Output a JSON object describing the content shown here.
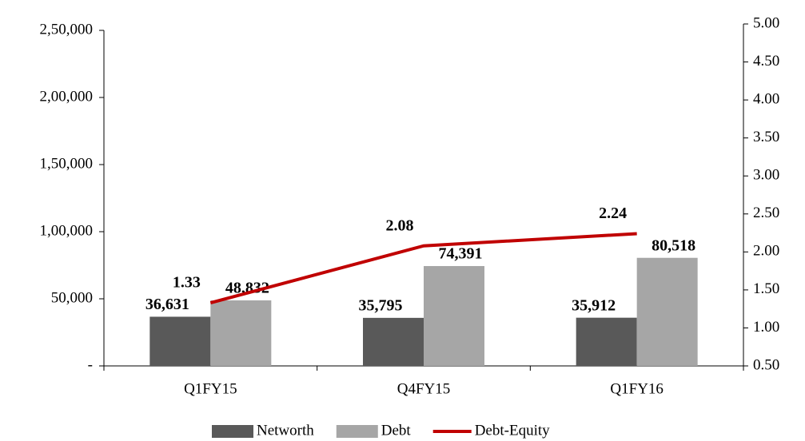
{
  "chart_data": {
    "type": "bar",
    "categories": [
      "Q1FY15",
      "Q4FY15",
      "Q1FY16"
    ],
    "series": [
      {
        "name": "Networth",
        "type": "bar",
        "color": "#595959",
        "values": [
          36631,
          35795,
          35912
        ],
        "value_labels": [
          "36,631",
          "35,795",
          "35,912"
        ]
      },
      {
        "name": "Debt",
        "type": "bar",
        "color": "#a6a6a6",
        "values": [
          48832,
          74391,
          80518
        ],
        "value_labels": [
          "48,832",
          "74,391",
          "80,518"
        ]
      },
      {
        "name": "Debt-Equity",
        "type": "line",
        "axis": "y2",
        "color": "#c00000",
        "values": [
          1.33,
          2.08,
          2.24
        ]
      }
    ],
    "ylim": [
      0,
      250000
    ],
    "yticks": [
      {
        "value": 0,
        "label": "-"
      },
      {
        "value": 50000,
        "label": "50,000"
      },
      {
        "value": 100000,
        "label": "1,00,000"
      },
      {
        "value": 150000,
        "label": "1,50,000"
      },
      {
        "value": 200000,
        "label": "2,00,000"
      },
      {
        "value": 250000,
        "label": "2,50,000"
      }
    ],
    "y2lim": [
      0.5,
      5
    ],
    "y2ticks": [
      {
        "value": 0.5,
        "label": "0.50"
      },
      {
        "value": 1,
        "label": "1.00"
      },
      {
        "value": 1.5,
        "label": "1.50"
      },
      {
        "value": 2,
        "label": "2.00"
      },
      {
        "value": 2.5,
        "label": "2.50"
      },
      {
        "value": 3,
        "label": "3.00"
      },
      {
        "value": 3.5,
        "label": "3.50"
      },
      {
        "value": 4,
        "label": "4.00"
      },
      {
        "value": 4.5,
        "label": "4.50"
      },
      {
        "value": 5,
        "label": "5.00"
      }
    ],
    "legend": "bottom"
  }
}
